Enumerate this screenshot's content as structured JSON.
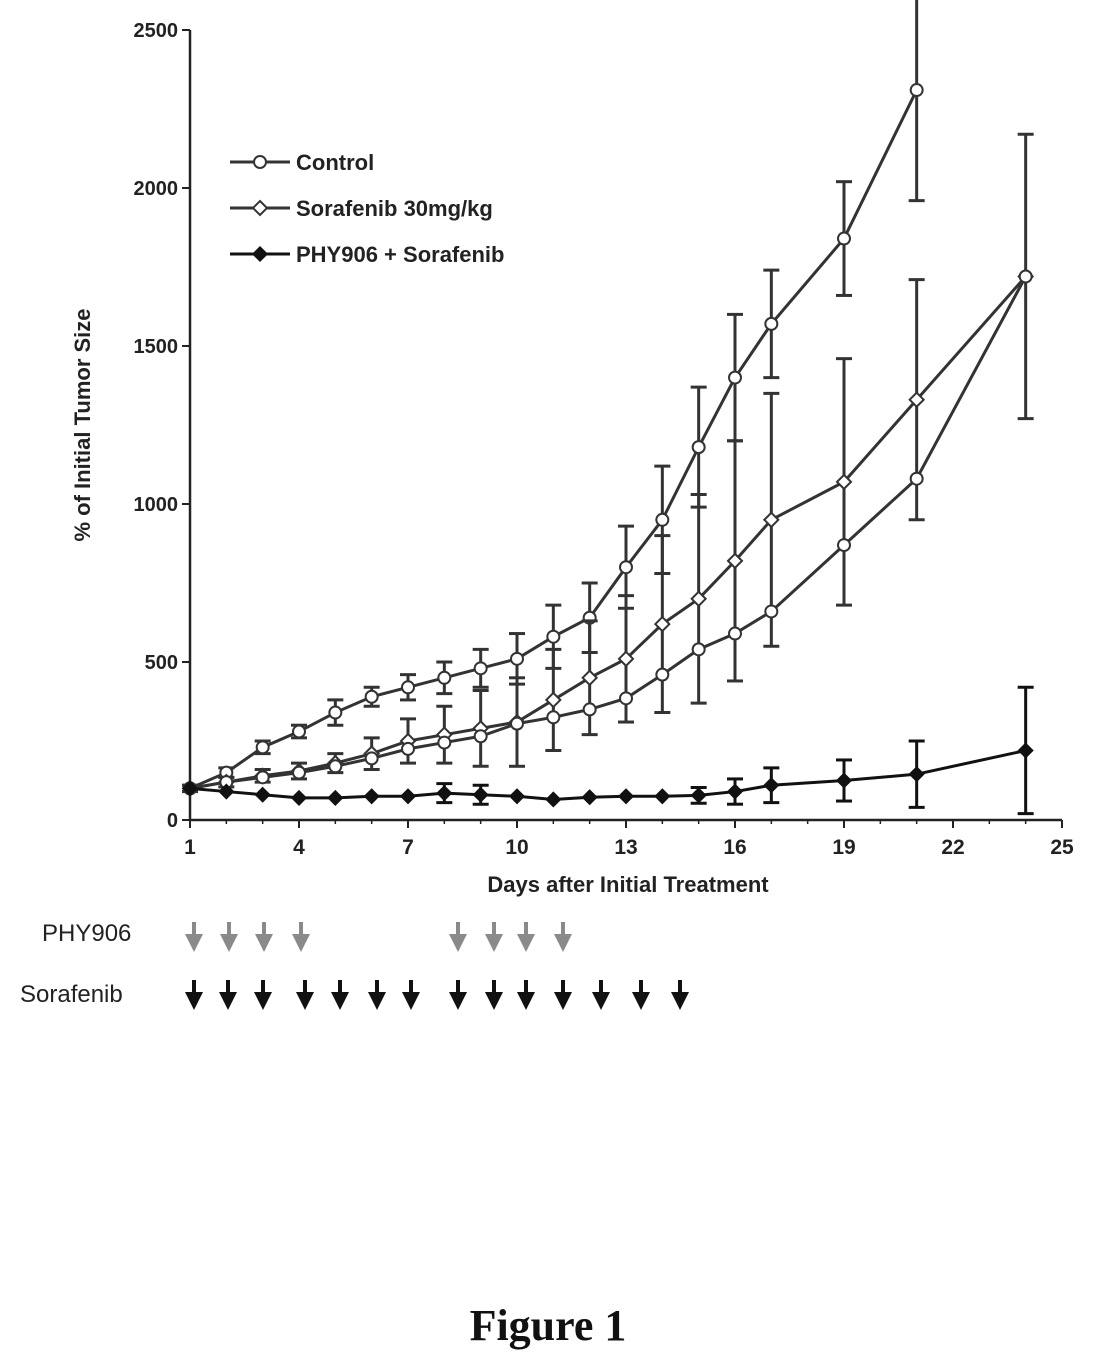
{
  "chart_data": {
    "type": "line",
    "xlabel": "Days after Initial Treatment",
    "ylabel": "% of Initial Tumor Size",
    "xlim": [
      1,
      25
    ],
    "ylim": [
      0,
      2500
    ],
    "x_ticks": [
      "1",
      "4",
      "7",
      "10",
      "13",
      "16",
      "19",
      "22",
      "25"
    ],
    "y_ticks": [
      "0",
      "500",
      "1000",
      "1500",
      "2000",
      "2500"
    ],
    "grid": false,
    "legend_position": "top-left",
    "series": [
      {
        "name": "Control",
        "marker": "open-circle",
        "color": "#333333",
        "x": [
          1,
          2,
          3,
          4,
          5,
          6,
          7,
          8,
          9,
          10,
          11,
          12,
          13,
          14,
          15,
          16,
          17,
          19,
          21
        ],
        "y": [
          100,
          150,
          230,
          280,
          340,
          390,
          420,
          450,
          480,
          510,
          580,
          640,
          800,
          950,
          1180,
          1400,
          1570,
          1840,
          2310
        ],
        "err": [
          10,
          15,
          20,
          20,
          40,
          30,
          40,
          50,
          60,
          80,
          100,
          110,
          130,
          170,
          190,
          200,
          170,
          180,
          350
        ]
      },
      {
        "name": "Sorafenib 30mg/kg",
        "marker": "open-diamond",
        "color": "#333333",
        "x": [
          1,
          2,
          3,
          4,
          5,
          6,
          7,
          8,
          9,
          10,
          11,
          12,
          13,
          14,
          15,
          16,
          17,
          19,
          21,
          24
        ],
        "y": [
          100,
          120,
          140,
          155,
          180,
          210,
          250,
          270,
          290,
          310,
          380,
          450,
          510,
          620,
          700,
          820,
          950,
          1070,
          1330,
          1720
        ],
        "err": [
          10,
          15,
          20,
          25,
          30,
          50,
          70,
          90,
          120,
          140,
          160,
          180,
          200,
          280,
          330,
          380,
          400,
          390,
          380,
          450
        ]
      },
      {
        "name": "",
        "marker": "open-circle",
        "color": "#333333",
        "x": [
          1,
          2,
          3,
          4,
          5,
          6,
          7,
          8,
          9,
          10,
          11,
          12,
          13,
          14,
          15,
          16,
          17,
          19,
          21,
          24
        ],
        "y": [
          100,
          120,
          135,
          150,
          170,
          195,
          225,
          245,
          265,
          305,
          325,
          350,
          385,
          460,
          540,
          590,
          660,
          870,
          1080,
          1720
        ],
        "err": [
          0,
          0,
          0,
          0,
          0,
          0,
          0,
          0,
          0,
          0,
          0,
          0,
          0,
          0,
          0,
          0,
          0,
          0,
          0,
          0
        ]
      },
      {
        "name": "PHY906 + Sorafenib",
        "marker": "filled-diamond",
        "color": "#111111",
        "x": [
          1,
          2,
          3,
          4,
          5,
          6,
          7,
          8,
          9,
          10,
          11,
          12,
          13,
          14,
          15,
          16,
          17,
          19,
          21,
          24
        ],
        "y": [
          100,
          90,
          80,
          70,
          70,
          75,
          75,
          85,
          80,
          75,
          65,
          72,
          75,
          75,
          78,
          90,
          110,
          125,
          145,
          220
        ],
        "err": [
          0,
          0,
          0,
          0,
          0,
          0,
          0,
          30,
          30,
          0,
          0,
          0,
          0,
          0,
          25,
          40,
          55,
          65,
          105,
          200
        ]
      }
    ]
  },
  "dosing": {
    "phy906_label": "PHY906",
    "sorafenib_label": "Sorafenib",
    "phy906_color": "#8a8a8a",
    "sorafenib_color": "#111111"
  },
  "figure_caption": "Figure 1"
}
